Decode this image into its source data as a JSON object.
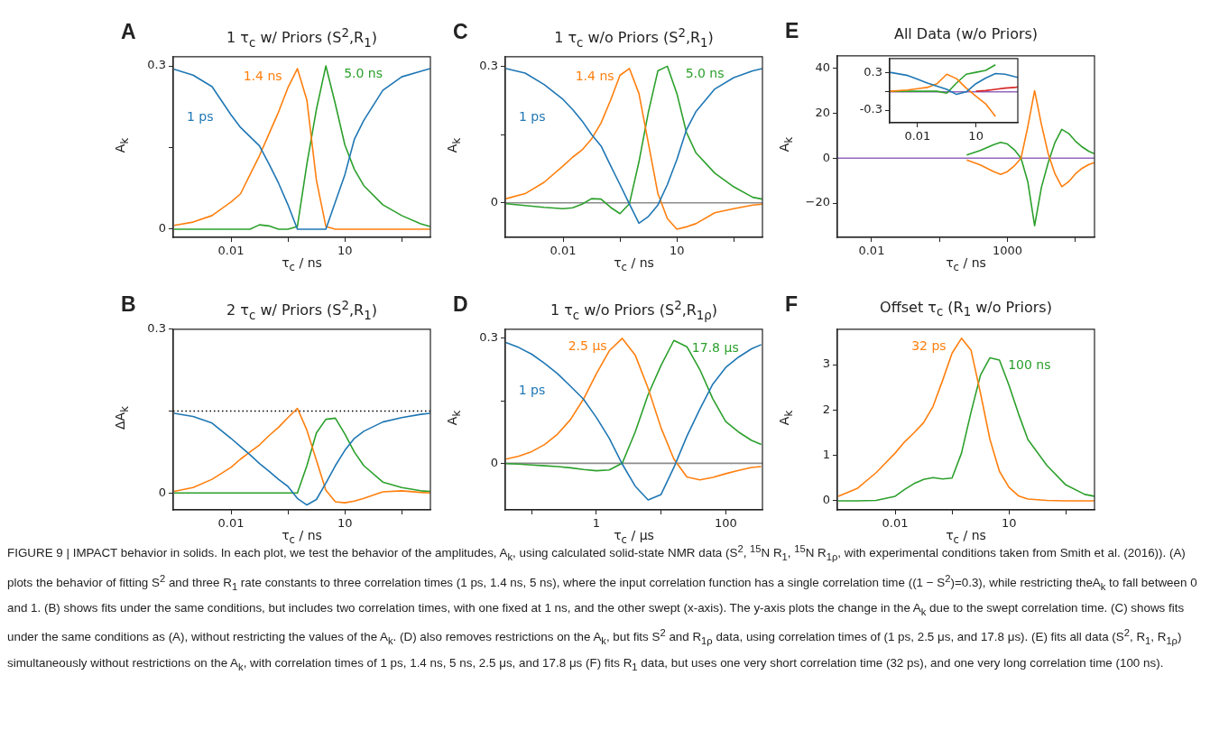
{
  "chart_data": [
    {
      "type": "line",
      "title": "1 τ$_{c}$ w/ Priors (S$^{2}$,R$_{1}$)",
      "xlabel": "τ$_{c}$ / ns",
      "ylabel": "A$_{k}$",
      "annotations": [
        "A"
      ],
      "log": "x",
      "marker": "none",
      "legend": false,
      "x": [
        0.000316,
        0.001,
        0.00316,
        0.01,
        0.0178,
        0.0316,
        0.0562,
        0.1,
        0.178,
        0.316,
        0.562,
        1,
        1.78,
        3.16,
        5.62,
        10,
        17.8,
        31.6,
        100,
        316,
        1000,
        1780
      ],
      "xlim": [
        0.0003,
        1800
      ],
      "xticks": [
        0.01,
        {
          "value": 0.316,
          "label": null
        },
        10,
        {
          "value": 316,
          "label": null
        }
      ],
      "ylim": [
        -0.015,
        0.317
      ],
      "yticks": [
        0,
        {
          "value": 0.15,
          "label": null
        },
        0.3
      ],
      "series": [
        {
          "name": "1 ps",
          "color": "#1f77b4",
          "values": [
            0.294,
            0.283,
            0.262,
            0.21,
            0.187,
            0.17,
            0.153,
            0.12,
            0.085,
            0.045,
            0,
            0,
            0,
            0,
            0.05,
            0.1,
            0.165,
            0.2,
            0.255,
            0.28,
            0.29,
            0.295
          ]
        },
        {
          "name": "1.4 ns",
          "color": "#ff7f0e",
          "values": [
            0.007,
            0.013,
            0.025,
            0.05,
            0.065,
            0.1,
            0.135,
            0.175,
            0.215,
            0.26,
            0.295,
            0.237,
            0.09,
            0.005,
            0,
            0,
            0,
            0,
            0,
            0,
            0,
            0
          ]
        },
        {
          "name": "5.0 ns",
          "color": "#2ca02c",
          "values": [
            0,
            0,
            0,
            0,
            0,
            0,
            0.008,
            0.006,
            0,
            0,
            0.005,
            0.12,
            0.22,
            0.3,
            0.23,
            0.155,
            0.11,
            0.08,
            0.045,
            0.025,
            0.01,
            0.005
          ]
        }
      ]
    },
    {
      "type": "line",
      "title": "1 τ$_{c}$ w/o Priors (S$^{2}$,R$_{1}$)",
      "xlabel": "τ$_{c}$ / ns",
      "ylabel": "A$_{k}$",
      "annotations": [
        "C"
      ],
      "log": "x",
      "marker": "none",
      "legend": false,
      "x": [
        0.000316,
        0.001,
        0.00316,
        0.01,
        0.0178,
        0.0316,
        0.0562,
        0.1,
        0.178,
        0.316,
        0.562,
        1,
        1.78,
        3.16,
        5.62,
        10,
        17.8,
        31.6,
        100,
        316,
        1000,
        1780
      ],
      "xlim": [
        0.0003,
        1800
      ],
      "xticks": [
        0.01,
        {
          "value": 0.316,
          "label": null
        },
        10,
        {
          "value": 316,
          "label": null
        }
      ],
      "ylim": [
        -0.076,
        0.321
      ],
      "yticks": [
        0,
        {
          "value": 0.15,
          "label": null
        },
        0.3
      ],
      "ref_lines": [
        {
          "axis": "y",
          "value": 0,
          "color": "#8c8c8c",
          "line_style": "solid"
        }
      ],
      "series": [
        {
          "name": "1 ps",
          "color": "#1f77b4",
          "values": [
            0.295,
            0.285,
            0.26,
            0.227,
            0.205,
            0.18,
            0.15,
            0.125,
            0.082,
            0.04,
            -0.003,
            -0.045,
            -0.03,
            -0.005,
            0.04,
            0.095,
            0.16,
            0.2,
            0.25,
            0.275,
            0.29,
            0.295
          ]
        },
        {
          "name": "1.4 ns",
          "color": "#ff7f0e",
          "values": [
            0.009,
            0.02,
            0.045,
            0.081,
            0.1,
            0.116,
            0.14,
            0.175,
            0.225,
            0.28,
            0.295,
            0.24,
            0.13,
            0.02,
            -0.035,
            -0.058,
            -0.053,
            -0.046,
            -0.022,
            -0.013,
            -0.005,
            -0.003
          ]
        },
        {
          "name": "5.0 ns",
          "color": "#2ca02c",
          "values": [
            -0.002,
            -0.006,
            -0.01,
            -0.013,
            -0.011,
            -0.003,
            0.009,
            0.008,
            -0.01,
            -0.024,
            -0.002,
            0.09,
            0.2,
            0.29,
            0.3,
            0.24,
            0.155,
            0.11,
            0.065,
            0.035,
            0.012,
            0.008
          ]
        }
      ]
    },
    {
      "type": "line",
      "title": "All Data (w/o Priors)",
      "xlabel": "τ$_{c}$ / ns",
      "ylabel": "A$_{k}$",
      "annotations": [
        "E"
      ],
      "log": "x",
      "marker": "none",
      "legend": false,
      "x": [
        0.000562,
        0.00316,
        0.01,
        0.1,
        1,
        10,
        31.6,
        100,
        316,
        562,
        1000,
        1780,
        3160,
        5620,
        10000,
        17800,
        31600,
        56200,
        100000,
        178000,
        316000,
        562000,
        1000000,
        1580000
      ],
      "xlim": [
        0.00055,
        1600000
      ],
      "xticks": [
        0.01,
        {
          "value": 3.16,
          "label": null
        },
        1000,
        {
          "value": 316000,
          "label": null
        }
      ],
      "ylim": [
        -35.2,
        45.5
      ],
      "yticks": [
        {
          "value": -20,
          "label": "−20"
        },
        0,
        20,
        40
      ],
      "series": [
        {
          "color": "#ff7f0e",
          "values": [
            null,
            null,
            null,
            null,
            null,
            null,
            -0.8,
            -3,
            -6,
            -7.2,
            -6,
            -3.5,
            0,
            14,
            30,
            15,
            2,
            -7,
            -12.7,
            -10.5,
            -7,
            -4.5,
            -2.8,
            -2
          ]
        },
        {
          "color": "#2ca02c",
          "values": [
            null,
            null,
            null,
            null,
            null,
            null,
            1.4,
            3.4,
            6,
            7,
            6.3,
            3.8,
            0,
            -10.5,
            -30,
            -13,
            -2,
            7,
            12.8,
            11,
            7.6,
            5,
            3,
            2
          ]
        },
        {
          "color": "#9467bd",
          "values": [
            0,
            0,
            0,
            0,
            0,
            0,
            0,
            0,
            0,
            0,
            0,
            0,
            0,
            0,
            0,
            0,
            0,
            0,
            0,
            0,
            0,
            0,
            0,
            0
          ]
        }
      ]
    },
    {
      "type": "line",
      "log": "x",
      "marker": "none",
      "legend": false,
      "x": [
        0.00037,
        0.00316,
        0.01,
        0.0316,
        0.1,
        0.316,
        1,
        3.16,
        10,
        31.6,
        100,
        316,
        1000,
        1410
      ],
      "xlim": [
        0.00037,
        1410
      ],
      "xticks": [
        0.01,
        10
      ],
      "ylim": [
        -0.5,
        0.52
      ],
      "yticks": [
        {
          "value": -0.3,
          "label": "-0.3"
        },
        {
          "value": 0,
          "label": null
        },
        0.3
      ],
      "series": [
        {
          "color": "#1f77b4",
          "values": [
            0.3,
            0.25,
            0.19,
            0.13,
            0.08,
            0.03,
            -0.05,
            -0.01,
            0.12,
            0.21,
            0.28,
            0.27,
            0.23,
            0.22
          ]
        },
        {
          "color": "#ff7f0e",
          "values": [
            0,
            0.02,
            0.04,
            0.06,
            0.12,
            0.27,
            0.2,
            0.05,
            -0.08,
            -0.2,
            -0.4,
            null,
            null,
            null
          ]
        },
        {
          "color": "#2ca02c",
          "values": [
            0,
            0,
            0,
            0,
            0,
            -0.03,
            0.13,
            0.27,
            0.3,
            0.33,
            0.42,
            null,
            null,
            null
          ]
        },
        {
          "color": "#d62728",
          "values": [
            null,
            null,
            null,
            null,
            null,
            null,
            null,
            null,
            0,
            0.01,
            0.03,
            0.05,
            0.06,
            0.07
          ]
        },
        {
          "color": "#9467bd",
          "values": [
            -0.01,
            -0.01,
            -0.01,
            -0.01,
            -0.01,
            -0.01,
            -0.01,
            -0.01,
            -0.01,
            -0.01,
            -0.01,
            -0.01,
            -0.01,
            -0.01
          ]
        }
      ]
    },
    {
      "type": "line",
      "title": "2 τ$_{c}$ w/ Priors (S$^{2}$,R$_{1}$)",
      "xlabel": "τ$_{c}$ / ns",
      "ylabel": "ΔA$_{k}$",
      "annotations": [
        "B"
      ],
      "log": "x",
      "marker": "none",
      "legend": false,
      "x": [
        0.000316,
        0.001,
        0.00316,
        0.01,
        0.0178,
        0.0316,
        0.0562,
        0.1,
        0.178,
        0.316,
        0.562,
        1,
        1.78,
        3.16,
        5.62,
        10,
        17.8,
        31.6,
        100,
        316,
        1000,
        1780
      ],
      "xlim": [
        0.0003,
        1800
      ],
      "xticks": [
        0.01,
        {
          "value": 0.316,
          "label": null
        },
        10,
        {
          "value": 316,
          "label": null
        }
      ],
      "ylim": [
        -0.031,
        0.3
      ],
      "yticks": [
        0,
        {
          "value": 0.15,
          "label": null
        },
        0.3
      ],
      "ref_lines": [
        {
          "axis": "y",
          "value": 0.15,
          "color": "#000000",
          "line_style": "dotted"
        }
      ],
      "series": [
        {
          "color": "#1f77b4",
          "values": [
            0.146,
            0.14,
            0.128,
            0.1,
            0.085,
            0.07,
            0.054,
            0.04,
            0.025,
            0.012,
            -0.01,
            -0.022,
            -0.012,
            0.018,
            0.05,
            0.078,
            0.1,
            0.113,
            0.13,
            0.138,
            0.144,
            0.146
          ]
        },
        {
          "color": "#ff7f0e",
          "values": [
            0.003,
            0.01,
            0.025,
            0.047,
            0.062,
            0.075,
            0.088,
            0.105,
            0.12,
            0.138,
            0.155,
            0.115,
            0.06,
            0.005,
            -0.016,
            -0.018,
            -0.015,
            -0.01,
            0.002,
            0.004,
            0.001,
            0
          ]
        },
        {
          "color": "#2ca02c",
          "values": [
            0,
            0,
            0,
            0,
            0,
            0,
            0,
            0,
            0,
            0,
            0,
            0.05,
            0.11,
            0.135,
            0.137,
            0.108,
            0.075,
            0.05,
            0.02,
            0.01,
            0.004,
            0.003
          ]
        }
      ]
    },
    {
      "type": "line",
      "title": "1 τ$_{c}$ w/o Priors (S$^{2}$,R$_{1ρ}$)",
      "xlabel": "τ$_{c}$ / μs",
      "ylabel": "A$_{k}$",
      "annotations": [
        "D"
      ],
      "log": "x",
      "marker": "none",
      "legend": false,
      "x": [
        0.0398,
        0.0631,
        0.1,
        0.158,
        0.251,
        0.398,
        0.631,
        1,
        1.58,
        2.51,
        3.98,
        6.31,
        10,
        15.8,
        25.1,
        39.8,
        63.1,
        100,
        158,
        251,
        355
      ],
      "xlim": [
        0.039,
        370
      ],
      "xticks": [
        {
          "value": 0.1,
          "label": null
        },
        1,
        {
          "value": 10,
          "label": null
        },
        100
      ],
      "ylim": [
        -0.112,
        0.322
      ],
      "yticks": [
        0,
        {
          "value": 0.15,
          "label": null
        },
        0.3
      ],
      "ref_lines": [
        {
          "axis": "y",
          "value": 0,
          "color": "#8c8c8c",
          "line_style": "solid"
        }
      ],
      "series": [
        {
          "name": "1 ps",
          "color": "#1f77b4",
          "values": [
            0.29,
            0.278,
            0.262,
            0.24,
            0.215,
            0.185,
            0.154,
            0.11,
            0.06,
            -0.002,
            -0.055,
            -0.088,
            -0.075,
            -0.01,
            0.065,
            0.13,
            0.19,
            0.23,
            0.255,
            0.275,
            0.285
          ]
        },
        {
          "name": "2.5 μs",
          "color": "#ff7f0e",
          "values": [
            0.01,
            0.017,
            0.028,
            0.045,
            0.07,
            0.105,
            0.154,
            0.215,
            0.27,
            0.3,
            0.26,
            0.18,
            0.085,
            0.01,
            -0.033,
            -0.04,
            -0.034,
            -0.025,
            -0.017,
            -0.01,
            -0.008
          ]
        },
        {
          "name": "17.8 μs",
          "color": "#2ca02c",
          "values": [
            -0.001,
            -0.002,
            -0.004,
            -0.006,
            -0.008,
            -0.011,
            -0.015,
            -0.018,
            -0.016,
            0,
            0.075,
            0.165,
            0.235,
            0.295,
            0.28,
            0.225,
            0.155,
            0.1,
            0.075,
            0.055,
            0.045
          ]
        }
      ]
    },
    {
      "type": "line",
      "title": "Offset τ$_{c}$ (R$_{1}$ w/o Priors)",
      "xlabel": "τ$_{c}$ / ns",
      "ylabel": "A$_{k}$",
      "annotations": [
        "F"
      ],
      "log": "x",
      "marker": "none",
      "legend": false,
      "x": [
        0.000316,
        0.001,
        0.00316,
        0.01,
        0.0178,
        0.0316,
        0.0562,
        0.1,
        0.178,
        0.316,
        0.562,
        1,
        1.78,
        3.16,
        5.62,
        10,
        17.8,
        31.6,
        100,
        316,
        1000,
        1780
      ],
      "xlim": [
        0.0003,
        1800
      ],
      "xticks": [
        0.01,
        {
          "value": 0.316,
          "label": null
        },
        10,
        {
          "value": 316,
          "label": null
        }
      ],
      "ylim": [
        -0.2,
        3.78
      ],
      "yticks": [
        0,
        1,
        2,
        3
      ],
      "series": [
        {
          "name": "32 ps",
          "color": "#ff7f0e",
          "values": [
            0.1,
            0.27,
            0.62,
            1.05,
            1.3,
            1.5,
            1.72,
            2.08,
            2.65,
            3.25,
            3.58,
            3.32,
            2.37,
            1.35,
            0.65,
            0.3,
            0.11,
            0.04,
            0.01,
            0,
            0,
            0
          ]
        },
        {
          "name": "100 ns",
          "color": "#2ca02c",
          "values": [
            0,
            0,
            0.01,
            0.1,
            0.25,
            0.38,
            0.47,
            0.51,
            0.48,
            0.5,
            1.05,
            1.95,
            2.77,
            3.15,
            3.1,
            2.55,
            1.92,
            1.35,
            0.78,
            0.35,
            0.14,
            0.1
          ]
        }
      ]
    },
    {
      "type": "other",
      "annotations": [
        "FIGURE 9 | IMPACT behavior in solids. In each plot, we test the behavior of the amplitudes, A$_{k}$, using calculated solid-state NMR data (S$^{2}$, $^{15}$N R$_{1}$, $^{15}$N R$_{1ρ}$, with experimental conditions taken from Smith et al. (2016)). (A) plots the behavior of fitting S$^{2}$ and three R$_{1}$ rate constants to three correlation times (1 ps, 1.4 ns, 5 ns), where the input correlation function has a single correlation time ((1 − S$^{2}$)=0.3), while restricting theA$_{k}$ to fall between 0 and 1. (B) shows fits under the same conditions, but includes two correlation times, with one fixed at 1 ns, and the other swept (x-axis). The y-axis plots the change in the A$_{k}$ due to the swept correlation time. (C) shows fits under the same conditions as (A), without restricting the values of the A$_{k}$. (D) also removes restrictions on the A$_{k}$, but fits S$^{2}$ and R$_{1ρ}$ data, using correlation times of (1 ps, 2.5 μs, and 17.8 μs). (E) fits all data (S$^{2}$, R$_{1}$, R$_{1ρ}$) simultaneously without restrictions on the A$_{k}$, with correlation times of 1 ps, 1.4 ns, 5 ns, 2.5 μs, and 17.8 μs (F) fits R$_{1}$ data, but uses one very short correlation time (32 ps), and one very long correlation time (100 ns)."
      ]
    }
  ]
}
